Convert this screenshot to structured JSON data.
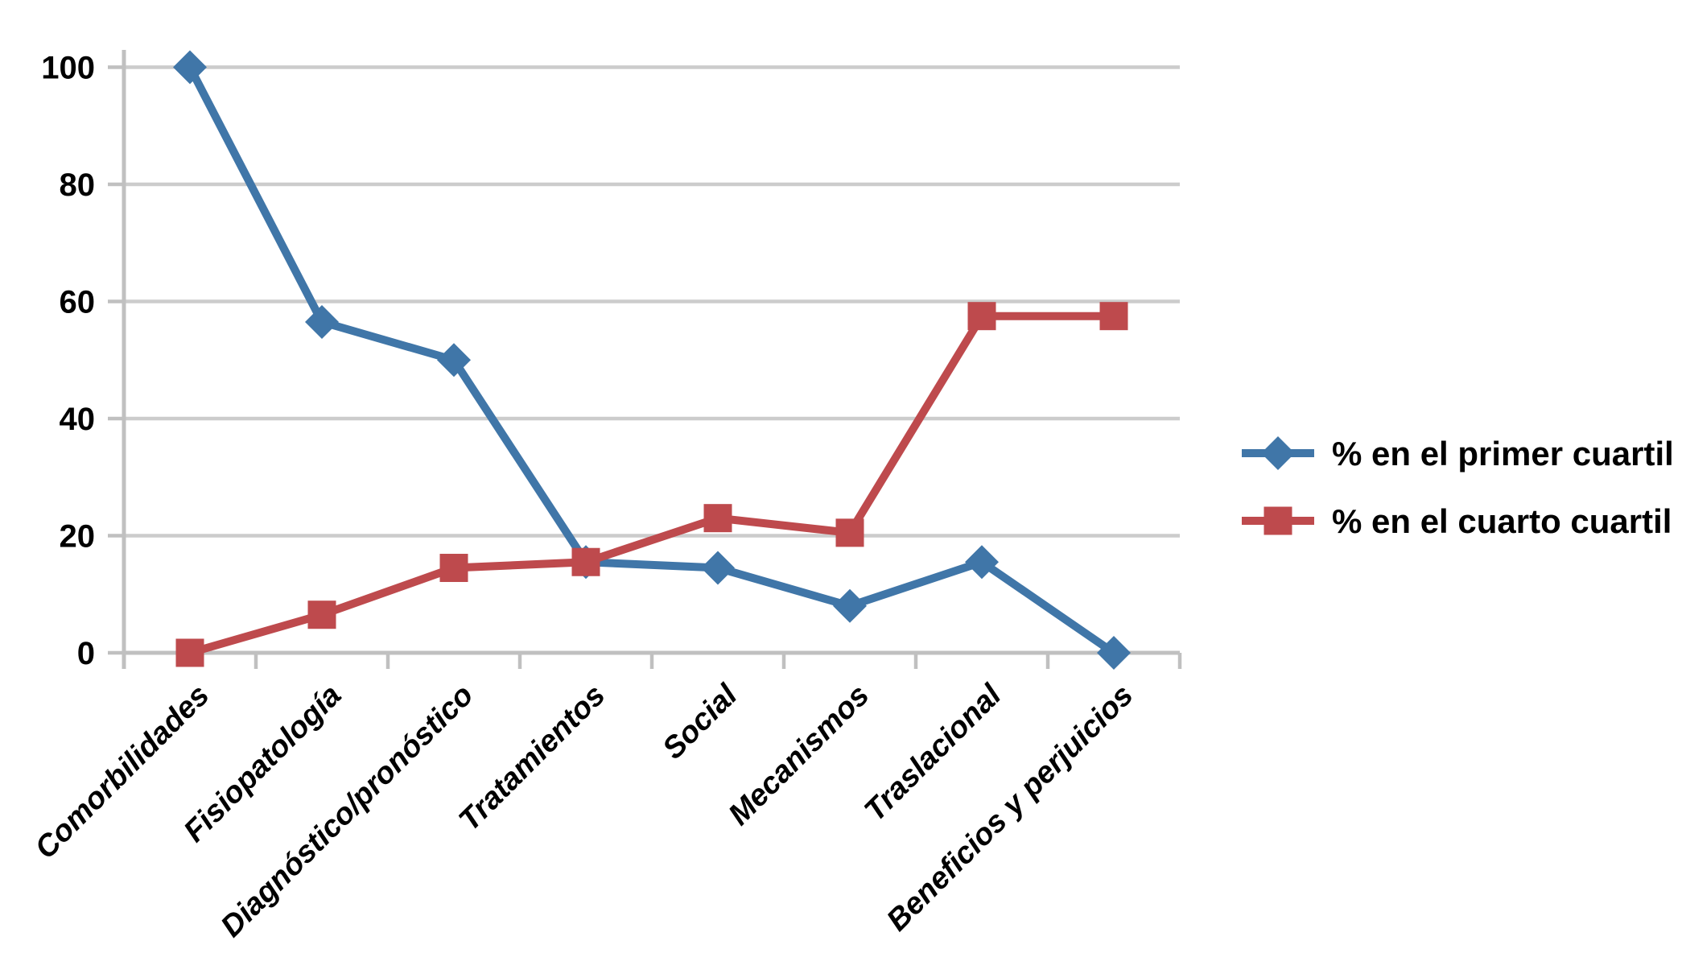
{
  "chart_data": {
    "type": "line",
    "title": "",
    "xlabel": "",
    "ylabel": "",
    "categories": [
      "Comorbilidades",
      "Fisiopatología",
      "Diagnóstico/pronóstico",
      "Tratamientos",
      "Social",
      "Mecanismos",
      "Traslacional",
      "Beneficios y perjuicios"
    ],
    "series": [
      {
        "name": "% en el primer cuartil",
        "marker": "diamond",
        "color": "#4076A8",
        "values": [
          100,
          56.5,
          50,
          15.5,
          14.5,
          8,
          15.5,
          0
        ]
      },
      {
        "name": "% en el cuarto cuartil",
        "marker": "square",
        "color": "#BE4A4D",
        "values": [
          0,
          6.5,
          14.5,
          15.5,
          23,
          20.5,
          57.5,
          57.5
        ]
      }
    ],
    "y_ticks": [
      0,
      20,
      40,
      60,
      80,
      100
    ],
    "ylim": [
      0,
      100
    ],
    "grid": true,
    "legend_position": "right",
    "colors": {
      "gridline": "#CCCCCC",
      "axis": "#C0C0C0",
      "text": "#000000",
      "background": "#FFFFFF"
    }
  }
}
